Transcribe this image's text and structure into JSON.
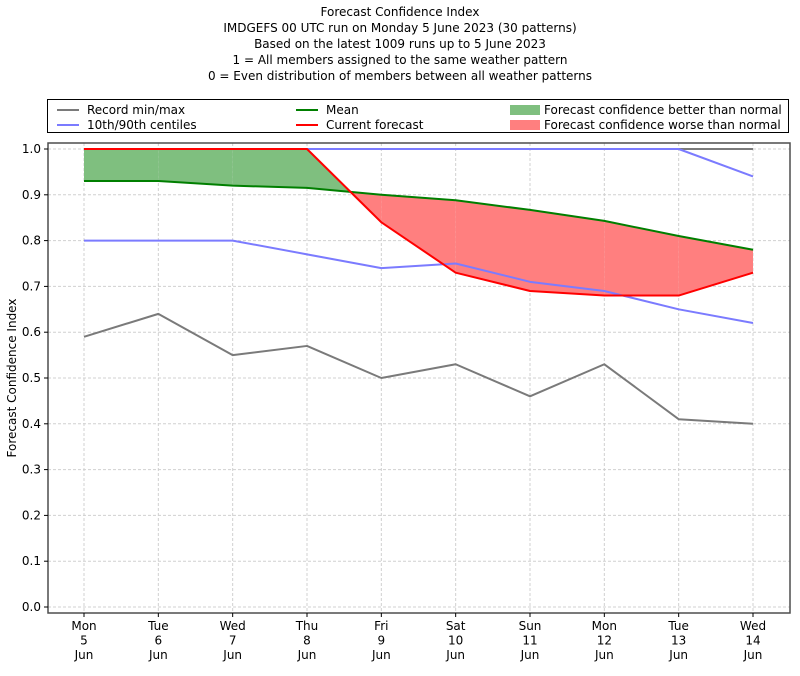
{
  "titles": [
    "Forecast Confidence Index",
    "IMDGEFS 00 UTC run on Monday 5 June 2023 (30 patterns)",
    "Based on the latest 1009 runs up to 5 June 2023",
    "1 = All members assigned to the same weather pattern",
    "0 = Even distribution of members between all weather patterns"
  ],
  "legend": {
    "record": {
      "label": "Record min/max",
      "color": "#7a7a7a"
    },
    "centiles": {
      "label": "10th/90th centiles",
      "color": "#7b7bff"
    },
    "mean": {
      "label": "Mean",
      "color": "#007f00"
    },
    "current": {
      "label": "Current forecast",
      "color": "#ff0000"
    },
    "better": {
      "label": "Forecast confidence better than normal",
      "color": "#7fbf7f"
    },
    "worse": {
      "label": "Forecast confidence worse than normal",
      "color": "#ff7f7f"
    }
  },
  "chart_data": {
    "type": "line",
    "title": "Forecast Confidence Index",
    "xlabel": "",
    "ylabel": "Forecast Confidence Index",
    "ylim": [
      0.0,
      1.0
    ],
    "yticks": [
      "0.0",
      "0.1",
      "0.2",
      "0.3",
      "0.4",
      "0.5",
      "0.6",
      "0.7",
      "0.8",
      "0.9",
      "1.0"
    ],
    "grid": true,
    "legend_position": "top",
    "categories": [
      [
        "Mon",
        "5",
        "Jun"
      ],
      [
        "Tue",
        "6",
        "Jun"
      ],
      [
        "Wed",
        "7",
        "Jun"
      ],
      [
        "Thu",
        "8",
        "Jun"
      ],
      [
        "Fri",
        "9",
        "Jun"
      ],
      [
        "Sat",
        "10",
        "Jun"
      ],
      [
        "Sun",
        "11",
        "Jun"
      ],
      [
        "Mon",
        "12",
        "Jun"
      ],
      [
        "Tue",
        "13",
        "Jun"
      ],
      [
        "Wed",
        "14",
        "Jun"
      ]
    ],
    "series": [
      {
        "name": "Record min",
        "values": [
          0.59,
          0.64,
          0.55,
          0.57,
          0.5,
          0.53,
          0.46,
          0.53,
          0.41,
          0.4
        ]
      },
      {
        "name": "Record max",
        "values": [
          1.0,
          1.0,
          1.0,
          1.0,
          1.0,
          1.0,
          1.0,
          1.0,
          1.0,
          1.0
        ]
      },
      {
        "name": "10th centile",
        "values": [
          0.8,
          0.8,
          0.8,
          0.77,
          0.74,
          0.75,
          0.71,
          0.69,
          0.65,
          0.62
        ]
      },
      {
        "name": "90th centile",
        "values": [
          1.0,
          1.0,
          1.0,
          1.0,
          1.0,
          1.0,
          1.0,
          1.0,
          1.0,
          0.94
        ]
      },
      {
        "name": "Mean",
        "values": [
          0.93,
          0.93,
          0.92,
          0.915,
          0.9,
          0.888,
          0.867,
          0.843,
          0.81,
          0.78
        ]
      },
      {
        "name": "Current forecast",
        "values": [
          1.0,
          1.0,
          1.0,
          1.0,
          0.84,
          0.73,
          0.69,
          0.68,
          0.68,
          0.73
        ]
      }
    ]
  }
}
